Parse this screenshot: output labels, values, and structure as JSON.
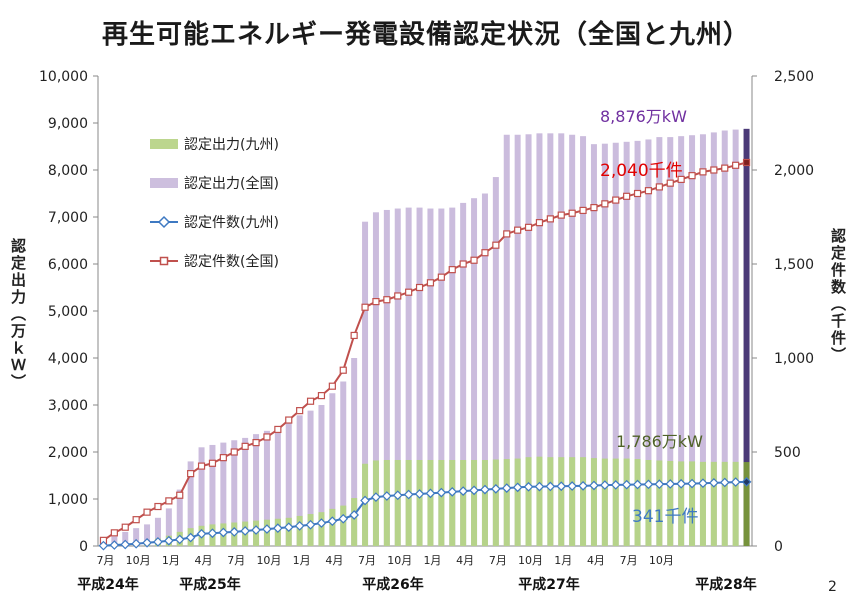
{
  "title": "再生可能エネルギー発電設備認定状況（全国と九州）",
  "page_number": "2",
  "chart_data": {
    "type": "bar+line",
    "ylabel_left": "認定出力（万ｋＷ）",
    "ylabel_right": "認定件数（千件）",
    "ylim_left": [
      0,
      10000
    ],
    "ylim_right": [
      0,
      2500
    ],
    "yticks_left": [
      "0",
      "1,000",
      "2,000",
      "3,000",
      "4,000",
      "5,000",
      "6,000",
      "7,000",
      "8,000",
      "9,000",
      "10,000"
    ],
    "yticks_right": [
      "0",
      "500",
      "1,000",
      "1,500",
      "2,000",
      "2,500"
    ],
    "month_labels": [
      "7月",
      "10月",
      "1月",
      "4月",
      "7月",
      "10月",
      "1月",
      "4月",
      "7月",
      "10月",
      "1月",
      "4月",
      "7月",
      "10月",
      "1月",
      "4月",
      "7月",
      "10月"
    ],
    "year_labels": [
      "平成24年",
      "平成25年",
      "平成26年",
      "平成27年",
      "平成28年"
    ],
    "series": [
      {
        "name": "認定出力(九州)",
        "kind": "bar",
        "axis": "left",
        "color": "#b6d38a",
        "values": [
          5,
          20,
          40,
          70,
          110,
          160,
          220,
          300,
          380,
          430,
          460,
          480,
          500,
          520,
          540,
          560,
          580,
          600,
          640,
          680,
          720,
          790,
          860,
          1020,
          1750,
          1820,
          1830,
          1830,
          1830,
          1830,
          1830,
          1830,
          1830,
          1830,
          1830,
          1830,
          1840,
          1850,
          1860,
          1890,
          1900,
          1890,
          1890,
          1890,
          1890,
          1870,
          1860,
          1860,
          1860,
          1850,
          1830,
          1820,
          1810,
          1800,
          1800,
          1790,
          1790,
          1790,
          1790,
          1786
        ]
      },
      {
        "name": "認定出力(全国)",
        "kind": "bar",
        "axis": "left",
        "color": "#cbbcdd",
        "values": [
          100,
          200,
          300,
          380,
          460,
          600,
          800,
          1200,
          1800,
          2100,
          2150,
          2200,
          2250,
          2300,
          2380,
          2450,
          2550,
          2650,
          2780,
          2880,
          3000,
          3250,
          3500,
          4000,
          6900,
          7100,
          7150,
          7180,
          7200,
          7200,
          7180,
          7180,
          7200,
          7300,
          7400,
          7500,
          7850,
          8750,
          8750,
          8760,
          8780,
          8780,
          8780,
          8750,
          8720,
          8550,
          8560,
          8580,
          8600,
          8620,
          8650,
          8700,
          8700,
          8720,
          8740,
          8760,
          8800,
          8840,
          8860,
          8876
        ]
      },
      {
        "name": "認定件数(九州)",
        "kind": "line",
        "axis": "right",
        "color": "#3e79c2",
        "values": [
          2,
          5,
          8,
          12,
          17,
          22,
          28,
          35,
          45,
          65,
          68,
          72,
          75,
          80,
          85,
          90,
          95,
          100,
          107,
          113,
          122,
          132,
          145,
          165,
          242,
          260,
          266,
          270,
          274,
          277,
          280,
          284,
          288,
          292,
          296,
          300,
          304,
          308,
          312,
          315,
          316,
          317,
          318,
          319,
          320,
          322,
          324,
          325,
          326,
          327,
          328,
          329,
          330,
          331,
          332,
          334,
          336,
          338,
          340,
          341
        ]
      },
      {
        "name": "認定件数(全国)",
        "kind": "line",
        "axis": "right",
        "color": "#c0504d",
        "values": [
          30,
          70,
          100,
          140,
          180,
          210,
          240,
          270,
          385,
          425,
          440,
          470,
          500,
          530,
          550,
          580,
          620,
          670,
          720,
          770,
          800,
          850,
          935,
          1120,
          1270,
          1300,
          1310,
          1330,
          1350,
          1375,
          1400,
          1430,
          1470,
          1500,
          1520,
          1560,
          1600,
          1660,
          1680,
          1695,
          1720,
          1740,
          1760,
          1770,
          1785,
          1800,
          1820,
          1840,
          1860,
          1875,
          1890,
          1910,
          1930,
          1950,
          1970,
          1990,
          2000,
          2010,
          2025,
          2040
        ]
      }
    ],
    "annotations": {
      "zenkoku_output": "8,876万kW",
      "zenkoku_count": "2,040千件",
      "kyushu_output": "1,786万kW",
      "kyushu_count": "341千件"
    }
  }
}
